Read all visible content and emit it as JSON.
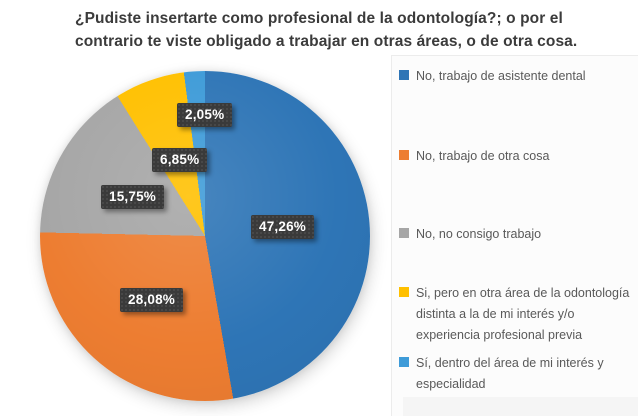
{
  "title": {
    "lines": [
      "¿Pudiste insertarte como profesional de la odontología?; o por el",
      "contrario te viste obligado a trabajar en otras áreas, o de otra cosa."
    ]
  },
  "chart_data": {
    "type": "pie",
    "title": "¿Pudiste insertarte como profesional de la odontología?; o por el contrario te viste obligado a trabajar en otras áreas, o de otra cosa.",
    "categories": [
      "No, trabajo de asistente dental",
      "No, trabajo de otra cosa",
      "No, no consigo trabajo",
      "Si, pero en otra área de la odontología distinta a la de mi interés y/o experiencia profesional previa",
      "Sí, dentro del área de mi interés y especialidad"
    ],
    "values": [
      47.26,
      28.08,
      15.75,
      6.85,
      2.05
    ],
    "labels": [
      "47,26%",
      "28,08%",
      "15,75%",
      "6,85%",
      "2,05%"
    ],
    "colors": [
      "#2E75B6",
      "#ED7D31",
      "#A6A6A6",
      "#FFC000",
      "#3E9BD8"
    ],
    "units": "%",
    "start_angle_deg": 0,
    "direction": "clockwise",
    "legend_position": "right",
    "label_style": "dark-callout-boxes"
  },
  "colors": {
    "label_box_bg": "#3A3A3A",
    "label_text": "#FFFFFF",
    "title_text": "#3B3B3B",
    "legend_text": "#595959",
    "background": "#FFFFFF"
  }
}
